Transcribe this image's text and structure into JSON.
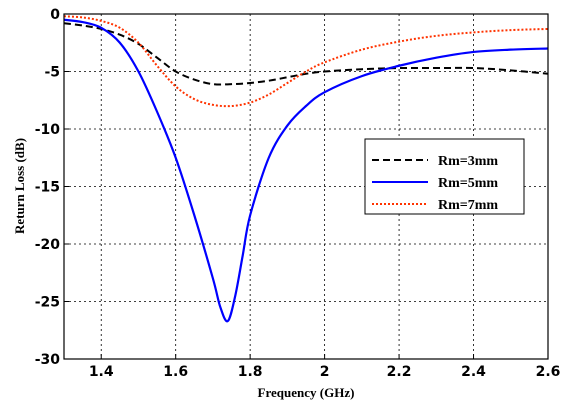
{
  "chart_data": {
    "type": "line",
    "title": "",
    "xlabel": "Frequency (GHz)",
    "ylabel": "Return Loss (dB)",
    "xlim": [
      1.3,
      2.6
    ],
    "ylim": [
      -30,
      0
    ],
    "xticks": [
      1.4,
      1.6,
      1.8,
      2.0,
      2.2,
      2.4,
      2.6
    ],
    "xtick_labels": [
      "1.4",
      "1.6",
      "1.8",
      "2",
      "2.2",
      "2.4",
      "2.6"
    ],
    "yticks": [
      0,
      -5,
      -10,
      -15,
      -20,
      -25,
      -30
    ],
    "ytick_labels": [
      "0",
      "-5",
      "-10",
      "-15",
      "-20",
      "-25",
      "-30"
    ],
    "grid": true,
    "legend_position": "right",
    "series": [
      {
        "name": "Rm=3mm",
        "color": "#000000",
        "style": "dashed",
        "x": [
          1.3,
          1.35,
          1.4,
          1.45,
          1.5,
          1.55,
          1.6,
          1.65,
          1.7,
          1.75,
          1.8,
          1.85,
          1.9,
          1.95,
          2.0,
          2.1,
          2.2,
          2.3,
          2.4,
          2.5,
          2.6
        ],
        "y": [
          -0.8,
          -1.0,
          -1.3,
          -1.8,
          -2.6,
          -3.8,
          -5.0,
          -5.7,
          -6.1,
          -6.1,
          -6.0,
          -5.8,
          -5.5,
          -5.2,
          -5.0,
          -4.8,
          -4.7,
          -4.7,
          -4.7,
          -4.9,
          -5.2
        ]
      },
      {
        "name": "Rm=5mm",
        "color": "#0000ff",
        "style": "solid",
        "x": [
          1.3,
          1.35,
          1.4,
          1.45,
          1.5,
          1.55,
          1.6,
          1.65,
          1.7,
          1.72,
          1.74,
          1.76,
          1.78,
          1.8,
          1.85,
          1.9,
          1.95,
          2.0,
          2.1,
          2.2,
          2.3,
          2.4,
          2.5,
          2.6
        ],
        "y": [
          -0.5,
          -0.7,
          -1.2,
          -2.5,
          -5.0,
          -8.5,
          -12.5,
          -17.5,
          -23.0,
          -25.5,
          -26.7,
          -24.5,
          -21.0,
          -17.5,
          -12.5,
          -9.7,
          -8.0,
          -6.8,
          -5.4,
          -4.5,
          -3.8,
          -3.3,
          -3.1,
          -3.0
        ]
      },
      {
        "name": "Rm=7mm",
        "color": "#ff3300",
        "style": "dotted",
        "x": [
          1.3,
          1.35,
          1.4,
          1.45,
          1.5,
          1.55,
          1.6,
          1.65,
          1.7,
          1.75,
          1.8,
          1.85,
          1.9,
          1.95,
          2.0,
          2.1,
          2.2,
          2.3,
          2.4,
          2.5,
          2.6
        ],
        "y": [
          -0.2,
          -0.3,
          -0.6,
          -1.2,
          -2.5,
          -4.5,
          -6.3,
          -7.4,
          -7.9,
          -8.0,
          -7.7,
          -7.0,
          -6.0,
          -5.0,
          -4.2,
          -3.1,
          -2.4,
          -1.9,
          -1.6,
          -1.4,
          -1.3
        ]
      }
    ]
  }
}
